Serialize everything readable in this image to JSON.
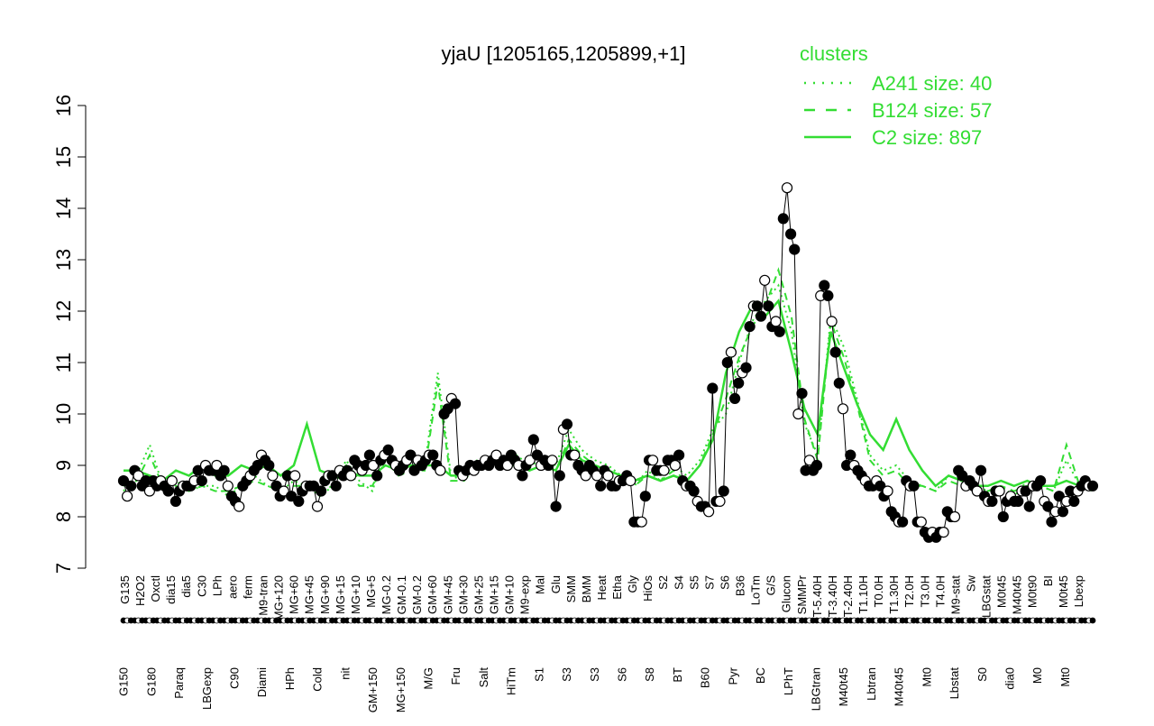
{
  "chart_data": {
    "type": "line",
    "title": "yjaU [1205165,1205899,+1]",
    "xlabel": "",
    "ylabel": "",
    "ylim": [
      7,
      16
    ],
    "yticks": [
      7,
      8,
      9,
      10,
      11,
      12,
      13,
      14,
      15,
      16
    ],
    "colors": {
      "cluster": "#33dd33",
      "axis": "#000000",
      "point": "#000000"
    },
    "legend": {
      "title": "clusters",
      "position": "top-right",
      "entries": [
        {
          "label": "A241 size: 40",
          "style": "dotted"
        },
        {
          "label": "B124 size: 57",
          "style": "dashed"
        },
        {
          "label": "C2 size: 897",
          "style": "solid"
        }
      ]
    },
    "categories_upper": [
      "G135",
      "H2O2",
      "Oxctl",
      "dia15",
      "dia5",
      "C30",
      "LPh",
      "aero",
      "ferm",
      "M9-tran",
      "MG+120",
      "MG+60",
      "MG+45",
      "MG+90",
      "MG+15",
      "MG+10",
      "MG+5",
      "MG-0.2",
      "GM-0.1",
      "GM-0.2",
      "GM+60",
      "GM+45",
      "GM+30",
      "GM+25",
      "GM+15",
      "GM+10",
      "M9-exp",
      "Mal",
      "Glu",
      "SMM",
      "BMM",
      "Heat",
      "Etha",
      "Gly",
      "HiOs",
      "S2",
      "S4",
      "S5",
      "S7",
      "S6",
      "B36",
      "LoTm",
      "G/S",
      "Glucon",
      "SMMPr",
      "T-5.40H",
      "T-3.40H",
      "T-2.40H",
      "T1.10H",
      "T0.0H",
      "T1.30H",
      "T2.0H",
      "T3.0H",
      "T4.0H",
      "M9-stat",
      "Sw",
      "LBGstat",
      "M0t45",
      "M40t45",
      "M0t90",
      "BI",
      "M0t45",
      "Lbexp"
    ],
    "categories_lower": [
      "G150",
      "G180",
      "Paraq",
      "LBGexp",
      "C90",
      "Diami",
      "HPh",
      "Cold",
      "nit",
      "GM+150",
      "MG+150",
      "M/G",
      "Fru",
      "Salt",
      "HiTm",
      "S1",
      "S3",
      "S3",
      "S6",
      "S8",
      "BT",
      "B60",
      "Pyr",
      "BC",
      "LPhT",
      "LBGtran",
      "M40t45",
      "Lbtran",
      "M40t45",
      "Mt0",
      "Lbstat",
      "S0",
      "dia0",
      "M0",
      "Mt0"
    ],
    "series": [
      {
        "values": [
          8.7,
          8.4,
          8.6,
          8.9,
          8.8,
          8.6,
          8.7,
          8.5,
          8.7,
          8.6,
          8.7,
          8.6,
          8.5,
          8.7,
          8.3,
          8.5,
          8.6,
          8.6,
          8.6,
          8.7,
          8.9,
          8.7,
          9.0,
          8.9,
          8.9,
          9.0,
          8.8,
          8.9,
          8.6,
          8.4,
          8.3,
          8.2,
          8.6,
          8.7,
          8.8,
          8.9,
          9.0,
          9.2,
          9.1,
          9.0,
          8.8,
          8.6,
          8.4,
          8.5,
          8.8,
          8.4,
          8.8,
          8.3,
          8.5,
          8.6,
          8.6,
          8.6,
          8.2,
          8.5,
          8.7,
          8.8,
          8.8,
          8.6,
          8.9,
          8.8,
          8.9,
          8.8,
          9.1,
          9.0,
          8.9,
          9.0,
          9.2,
          9.0,
          8.8,
          9.1,
          9.2,
          9.3,
          9.1,
          9.0,
          8.9,
          9.0,
          9.1,
          9.2,
          8.9,
          9.1,
          9.0,
          9.1,
          9.2,
          9.2,
          9.0,
          8.9,
          10.0,
          10.1,
          10.3,
          10.2,
          8.9,
          8.8,
          8.9,
          9.0,
          8.9,
          9.0,
          9.0,
          9.1,
          9.0,
          9.1,
          9.2,
          9.0,
          9.1,
          9.0,
          9.2,
          9.1,
          9.0,
          8.8,
          9.0,
          9.1,
          9.5,
          9.2,
          9.0,
          9.1,
          9.0,
          9.1,
          8.2,
          8.8,
          9.7,
          9.8,
          9.2,
          9.2,
          9.0,
          8.9,
          8.8,
          9.0,
          8.9,
          8.8,
          8.6,
          8.9,
          8.8,
          8.6,
          8.6,
          8.7,
          8.7,
          8.8,
          8.7,
          7.9,
          7.9,
          7.9,
          8.4,
          9.1,
          9.1,
          8.9,
          8.9,
          8.9,
          9.1,
          9.1,
          9.0,
          9.2,
          8.7,
          8.6,
          8.6,
          8.5,
          8.3,
          8.2,
          8.2,
          8.1,
          10.5,
          8.3,
          8.3,
          8.5,
          11.0,
          11.2,
          10.3,
          10.6,
          10.8,
          10.9,
          11.7,
          12.1,
          12.1,
          11.9,
          12.6,
          12.1,
          11.7,
          11.8,
          11.6,
          13.8,
          14.4,
          13.5,
          13.2,
          10.0,
          10.4,
          8.9,
          9.1,
          8.9,
          9.0,
          12.3,
          12.5,
          12.3,
          11.8,
          11.2,
          10.6,
          10.1,
          9.0,
          9.2,
          9.0,
          8.9,
          8.8,
          8.7,
          8.6,
          8.6,
          8.7,
          8.6,
          8.4,
          8.5,
          8.1,
          8.0,
          7.9,
          7.9,
          8.7,
          8.6,
          8.6,
          7.9,
          7.9,
          7.7,
          7.6,
          7.7,
          7.6,
          7.7,
          7.7,
          8.1,
          8.0,
          8.0,
          8.9,
          8.8,
          8.6,
          8.7,
          8.6,
          8.5,
          8.9,
          8.4,
          8.3,
          8.3,
          8.5,
          8.5,
          8.0,
          8.3,
          8.4,
          8.3,
          8.3,
          8.5,
          8.5,
          8.2,
          8.6,
          8.6,
          8.7,
          8.3,
          8.2,
          7.9,
          8.1,
          8.4,
          8.1,
          8.3,
          8.5,
          8.3,
          8.5,
          8.6,
          8.7,
          8.6,
          8.6
        ]
      }
    ],
    "cluster_lines": [
      {
        "name": "A241",
        "style": "dotted",
        "values": [
          8.5,
          8.8,
          9.4,
          8.6,
          8.7,
          8.5,
          8.6,
          8.6,
          8.4,
          8.6,
          8.8,
          8.6,
          8.5,
          8.7,
          8.6,
          8.4,
          8.6,
          9.1,
          8.7,
          8.5,
          9.3,
          8.9,
          9.0,
          9.0,
          10.8,
          8.8,
          8.7,
          9.1,
          9.2,
          9.1,
          9.2,
          9.0,
          9.1,
          9.0,
          9.7,
          9.3,
          9.1,
          9.0,
          8.8,
          8.6,
          8.9,
          8.7,
          9.0,
          8.8,
          9.1,
          9.7,
          10.0,
          11.0,
          11.8,
          12.2,
          12.5,
          11.6,
          9.8,
          9.2,
          11.9,
          11.3,
          10.3,
          9.2,
          8.9,
          9.0,
          8.7,
          8.6,
          8.5,
          8.8,
          8.7,
          8.6,
          8.5,
          8.6,
          8.4,
          8.7,
          8.6,
          8.5,
          9.1,
          8.6,
          8.5
        ]
      },
      {
        "name": "B124",
        "style": "dashed",
        "values": [
          8.6,
          8.7,
          9.2,
          8.6,
          8.6,
          8.5,
          8.6,
          8.5,
          8.5,
          8.6,
          8.7,
          8.6,
          8.5,
          8.6,
          8.6,
          8.5,
          8.6,
          9.0,
          8.6,
          8.6,
          9.1,
          8.8,
          8.9,
          8.9,
          10.6,
          8.7,
          8.7,
          9.0,
          9.1,
          9.0,
          9.1,
          8.9,
          9.0,
          8.9,
          9.5,
          9.2,
          9.0,
          8.9,
          8.8,
          8.6,
          8.8,
          8.7,
          8.9,
          8.7,
          9.0,
          9.6,
          10.3,
          11.1,
          11.7,
          12.1,
          12.8,
          11.9,
          9.9,
          9.1,
          11.8,
          11.1,
          10.2,
          9.1,
          8.8,
          8.9,
          8.6,
          8.6,
          8.5,
          8.7,
          8.6,
          8.6,
          8.5,
          8.6,
          8.5,
          8.6,
          8.6,
          8.5,
          9.4,
          8.6,
          8.5
        ]
      },
      {
        "name": "C2",
        "style": "solid",
        "values": [
          8.9,
          8.9,
          8.8,
          8.7,
          8.9,
          8.8,
          9.0,
          8.8,
          8.8,
          9.0,
          8.9,
          9.0,
          8.8,
          9.0,
          9.8,
          8.9,
          8.8,
          8.9,
          8.8,
          8.8,
          9.0,
          8.9,
          9.0,
          9.0,
          9.0,
          8.8,
          8.8,
          9.0,
          9.1,
          9.0,
          9.0,
          8.9,
          9.0,
          8.9,
          9.4,
          9.1,
          9.0,
          8.9,
          8.8,
          8.7,
          8.8,
          8.7,
          8.8,
          8.7,
          9.0,
          9.5,
          10.8,
          11.6,
          12.1,
          11.9,
          12.2,
          11.2,
          10.1,
          9.6,
          11.6,
          10.9,
          10.2,
          9.6,
          9.3,
          9.9,
          9.3,
          8.9,
          8.6,
          8.8,
          8.7,
          8.6,
          8.6,
          8.7,
          8.6,
          8.7,
          8.6,
          8.6,
          8.7,
          8.6,
          8.6
        ]
      }
    ]
  }
}
